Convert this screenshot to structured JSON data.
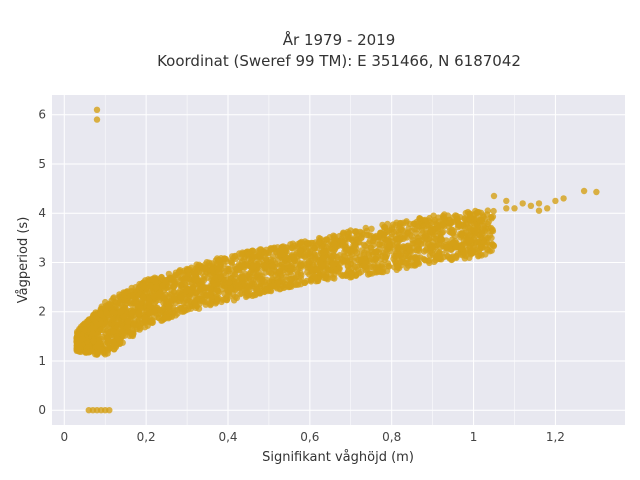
{
  "chart_data": {
    "type": "scatter",
    "title": "År 1979 - 2019",
    "subtitle": "Koordinat (Sweref 99 TM): E 351466, N 6187042",
    "xlabel": "Signifikant våghöjd (m)",
    "ylabel": "Vågperiod (s)",
    "xlim": [
      -0.03,
      1.37
    ],
    "ylim": [
      -0.3,
      6.4
    ],
    "x_ticks": [
      0,
      0.2,
      0.4,
      0.6,
      0.8,
      1,
      1.2
    ],
    "x_tick_labels": [
      "0",
      "0,2",
      "0,4",
      "0,6",
      "0,8",
      "1",
      "1,2"
    ],
    "y_ticks": [
      0,
      1,
      2,
      3,
      4,
      5,
      6
    ],
    "y_tick_labels": [
      "0",
      "1",
      "2",
      "3",
      "4",
      "5",
      "6"
    ],
    "grid": true,
    "marker_color": "#D4A017",
    "background_color": "#E8E8F0",
    "band": {
      "description": "dense cloud of points; period rises with height",
      "x_start": 0.03,
      "x_end": 1.05,
      "lower_bound": [
        [
          0.03,
          1.2
        ],
        [
          0.1,
          1.1
        ],
        [
          0.2,
          1.7
        ],
        [
          0.3,
          2.0
        ],
        [
          0.4,
          2.2
        ],
        [
          0.5,
          2.4
        ],
        [
          0.6,
          2.6
        ],
        [
          0.7,
          2.7
        ],
        [
          0.8,
          2.8
        ],
        [
          0.9,
          3.0
        ],
        [
          1.0,
          3.1
        ],
        [
          1.05,
          3.2
        ]
      ],
      "upper_bound": [
        [
          0.03,
          1.6
        ],
        [
          0.1,
          2.2
        ],
        [
          0.2,
          2.65
        ],
        [
          0.3,
          2.9
        ],
        [
          0.4,
          3.15
        ],
        [
          0.5,
          3.3
        ],
        [
          0.6,
          3.45
        ],
        [
          0.7,
          3.65
        ],
        [
          0.8,
          3.8
        ],
        [
          0.9,
          3.95
        ],
        [
          1.0,
          4.05
        ],
        [
          1.05,
          4.1
        ]
      ]
    },
    "outliers": [
      {
        "x": 0.08,
        "y": 6.1
      },
      {
        "x": 0.08,
        "y": 5.9
      },
      {
        "x": 0.06,
        "y": 0.0
      },
      {
        "x": 0.07,
        "y": 0.0
      },
      {
        "x": 0.08,
        "y": 0.0
      },
      {
        "x": 0.09,
        "y": 0.0
      },
      {
        "x": 0.1,
        "y": 0.0
      },
      {
        "x": 0.11,
        "y": 0.0
      },
      {
        "x": 1.08,
        "y": 4.1
      },
      {
        "x": 1.1,
        "y": 4.1
      },
      {
        "x": 1.12,
        "y": 4.2
      },
      {
        "x": 1.14,
        "y": 4.15
      },
      {
        "x": 1.16,
        "y": 4.2
      },
      {
        "x": 1.2,
        "y": 4.25
      },
      {
        "x": 1.22,
        "y": 4.3
      },
      {
        "x": 1.27,
        "y": 4.45
      },
      {
        "x": 1.3,
        "y": 4.43
      },
      {
        "x": 1.16,
        "y": 4.05
      },
      {
        "x": 1.18,
        "y": 4.1
      },
      {
        "x": 1.05,
        "y": 4.35
      },
      {
        "x": 1.08,
        "y": 4.25
      },
      {
        "x": 0.95,
        "y": 3.4
      },
      {
        "x": 0.97,
        "y": 3.35
      },
      {
        "x": 0.99,
        "y": 3.3
      },
      {
        "x": 1.0,
        "y": 3.3
      },
      {
        "x": 1.02,
        "y": 3.3
      },
      {
        "x": 1.03,
        "y": 3.35
      },
      {
        "x": 0.98,
        "y": 3.2
      },
      {
        "x": 1.0,
        "y": 3.2
      },
      {
        "x": 0.85,
        "y": 3.1
      },
      {
        "x": 0.87,
        "y": 3.1
      },
      {
        "x": 0.9,
        "y": 3.3
      },
      {
        "x": 0.92,
        "y": 3.45
      },
      {
        "x": 0.88,
        "y": 3.5
      }
    ]
  }
}
